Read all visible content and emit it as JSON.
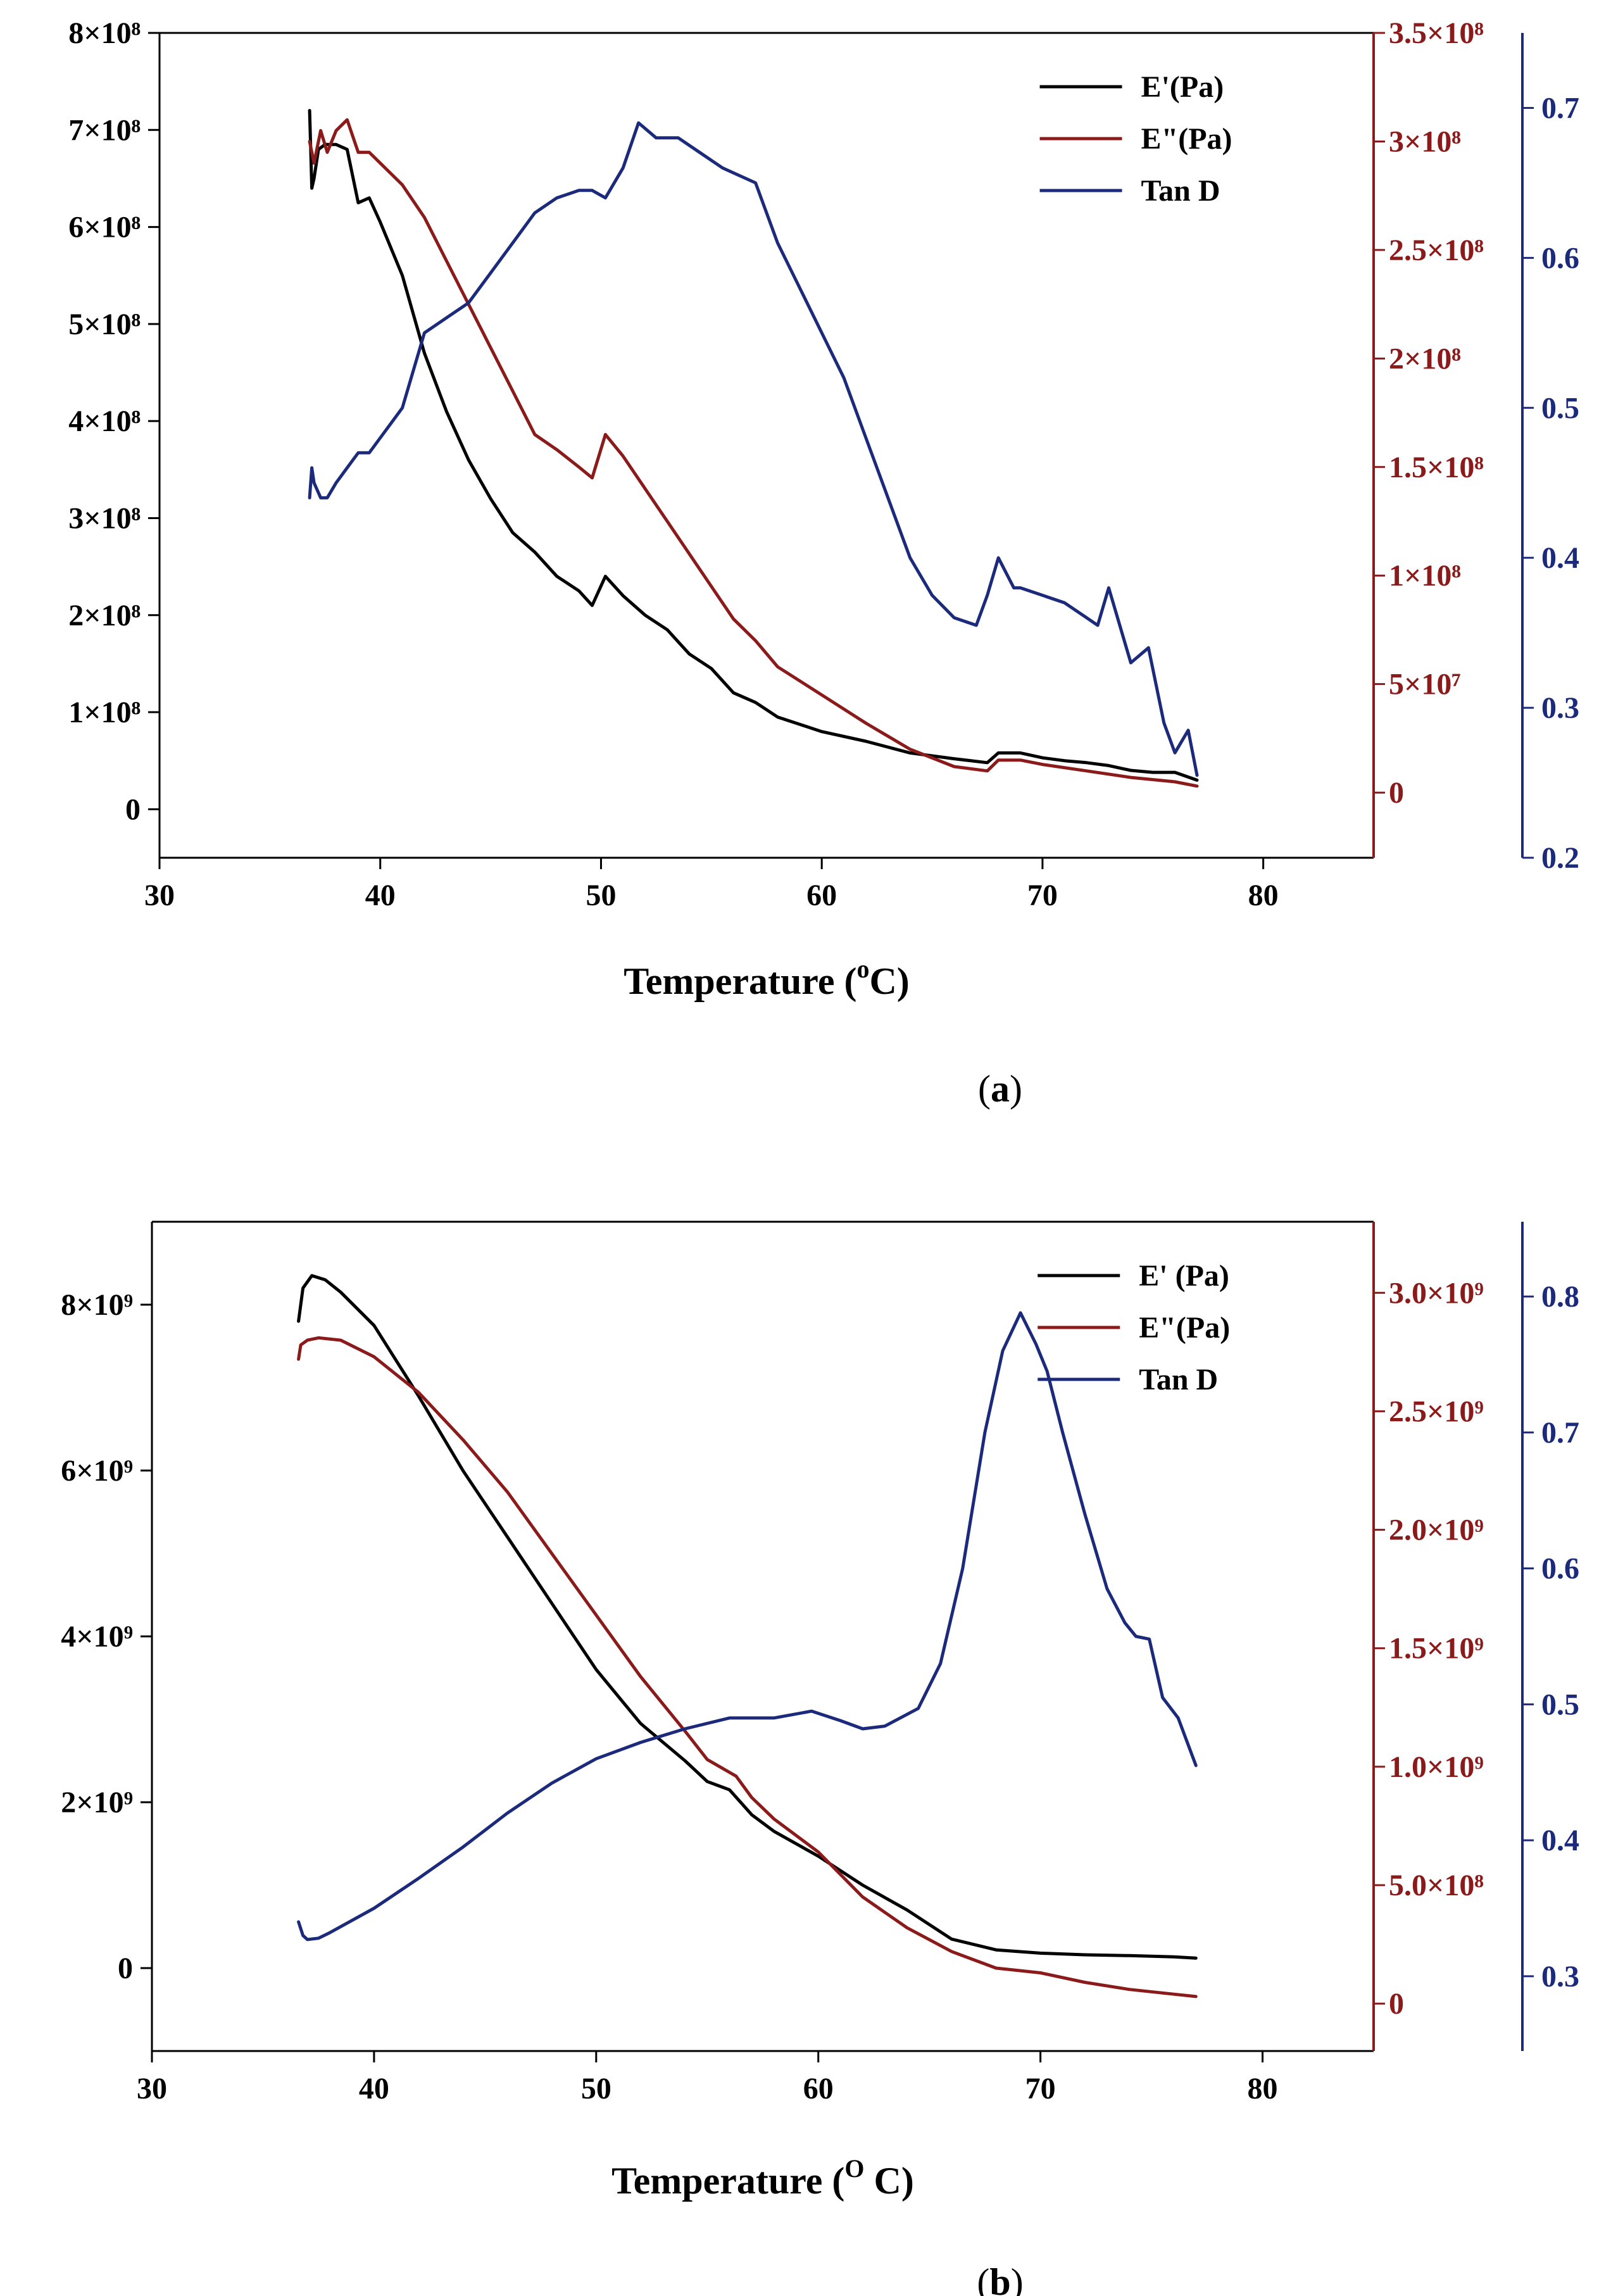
{
  "colors": {
    "black": "#000000",
    "red": "#8b1a1a",
    "blue": "#1b2a7a"
  },
  "chart_data": [
    {
      "type": "line",
      "panel": "a",
      "caption": "(a)",
      "caption_letter": "a",
      "xlabel": "Temperature (",
      "xlabel_sup": "o",
      "xlabel_tail": "C)",
      "xlim": [
        30,
        85
      ],
      "x_ticks": [
        "30",
        "40",
        "50",
        "60",
        "70",
        "80"
      ],
      "x_tick_values": [
        30,
        40,
        50,
        60,
        70,
        80
      ],
      "left_axis": {
        "ylim": [
          -50000000.0,
          800000000.0
        ],
        "ticks": [
          0,
          100000000.0,
          200000000.0,
          300000000.0,
          400000000.0,
          500000000.0,
          600000000.0,
          700000000.0,
          800000000.0
        ],
        "tick_labels": [
          "0",
          "1×10⁸",
          "2×10⁸",
          "3×10⁸",
          "4×10⁸",
          "5×10⁸",
          "6×10⁸",
          "7×10⁸",
          "8×10⁸"
        ]
      },
      "right_axis": {
        "ylim": [
          -30000000.0,
          350000000.0
        ],
        "ticks": [
          0,
          50000000.0,
          100000000.0,
          150000000.0,
          200000000.0,
          250000000.0,
          300000000.0,
          350000000.0
        ],
        "tick_labels": [
          "0",
          "5×10⁷",
          "1×10⁸",
          "1.5×10⁸",
          "2×10⁸",
          "2.5×10⁸",
          "3×10⁸",
          "3.5×10⁸"
        ]
      },
      "far_right_axis": {
        "ylim": [
          0.2,
          0.75
        ],
        "ticks": [
          0.2,
          0.3,
          0.4,
          0.5,
          0.6,
          0.7
        ],
        "tick_labels": [
          "0.2",
          "0.3",
          "0.4",
          "0.5",
          "0.6",
          "0.7"
        ]
      },
      "legend": [
        "E'(Pa)",
        "E\"(Pa)",
        "Tan D"
      ],
      "series": [
        {
          "name": "E'(Pa)",
          "axis": "left",
          "color": "#000000",
          "x": [
            36.8,
            36.9,
            37.0,
            37.2,
            37.5,
            38.0,
            38.5,
            39.0,
            39.5,
            40.0,
            41.0,
            42.0,
            43.0,
            44.0,
            45.0,
            46.0,
            47.0,
            48.0,
            49.0,
            49.6,
            50.2,
            51.0,
            52.0,
            53.0,
            54.0,
            55.0,
            56.0,
            57.0,
            58.0,
            60.0,
            62.0,
            64.0,
            66.0,
            67.5,
            68.0,
            69.0,
            70.0,
            71.0,
            72.0,
            73.0,
            74.0,
            75.0,
            76.0,
            77.0
          ],
          "y": [
            720000000.0,
            640000000.0,
            650000000.0,
            680000000.0,
            685000000.0,
            685000000.0,
            680000000.0,
            625000000.0,
            630000000.0,
            605000000.0,
            550000000.0,
            470000000.0,
            410000000.0,
            360000000.0,
            320000000.0,
            285000000.0,
            265000000.0,
            240000000.0,
            225000000.0,
            210000000.0,
            240000000.0,
            220000000.0,
            200000000.0,
            185000000.0,
            160000000.0,
            145000000.0,
            120000000.0,
            110000000.0,
            95000000.0,
            80000000.0,
            70000000.0,
            58000000.0,
            52000000.0,
            48000000.0,
            58000000.0,
            58000000.0,
            53000000.0,
            50000000.0,
            48000000.0,
            45000000.0,
            40000000.0,
            38000000.0,
            38000000.0,
            30000000.0
          ]
        },
        {
          "name": "E\"(Pa)",
          "axis": "right",
          "color": "#8b1a1a",
          "x": [
            36.8,
            37.0,
            37.3,
            37.6,
            38.0,
            38.5,
            39.0,
            39.5,
            40.0,
            40.5,
            41.0,
            42.0,
            43.0,
            44.0,
            45.0,
            46.0,
            47.0,
            48.0,
            49.0,
            49.6,
            50.2,
            51.0,
            52.0,
            53.0,
            54.0,
            55.0,
            56.0,
            57.0,
            58.0,
            60.0,
            62.0,
            64.0,
            66.0,
            67.5,
            68.0,
            69.0,
            70.0,
            72.0,
            74.0,
            76.0,
            77.0
          ],
          "y": [
            300000000.0,
            290000000.0,
            305000000.0,
            295000000.0,
            305000000.0,
            310000000.0,
            295000000.0,
            295000000.0,
            290000000.0,
            285000000.0,
            280000000.0,
            265000000.0,
            245000000.0,
            225000000.0,
            205000000.0,
            185000000.0,
            165000000.0,
            158000000.0,
            150000000.0,
            145000000.0,
            165000000.0,
            155000000.0,
            140000000.0,
            125000000.0,
            110000000.0,
            95000000.0,
            80000000.0,
            70000000.0,
            58000000.0,
            45000000.0,
            32000000.0,
            20000000.0,
            12000000.0,
            10000000.0,
            15000000.0,
            15000000.0,
            13000000.0,
            10000000.0,
            7000000.0,
            5000000.0,
            3000000.0
          ]
        },
        {
          "name": "Tan D",
          "axis": "far_right",
          "color": "#1b2a7a",
          "x": [
            36.8,
            36.9,
            37.0,
            37.3,
            37.6,
            38.0,
            38.5,
            39.0,
            39.5,
            40.0,
            40.5,
            41.0,
            42.0,
            43.0,
            44.0,
            45.0,
            46.0,
            47.0,
            48.0,
            49.0,
            49.6,
            50.2,
            51.0,
            51.7,
            52.5,
            53.5,
            54.5,
            55.5,
            57.0,
            58.0,
            59.0,
            60.0,
            61.0,
            62.0,
            63.0,
            64.0,
            65.0,
            66.0,
            67.0,
            67.5,
            68.0,
            68.7,
            69.0,
            70.0,
            71.0,
            72.0,
            72.5,
            73.0,
            74.0,
            74.8,
            75.5,
            76.0,
            76.6,
            77.0
          ],
          "y": [
            0.44,
            0.46,
            0.45,
            0.44,
            0.44,
            0.45,
            0.46,
            0.47,
            0.47,
            0.48,
            0.49,
            0.5,
            0.55,
            0.56,
            0.57,
            0.59,
            0.61,
            0.63,
            0.64,
            0.645,
            0.645,
            0.64,
            0.66,
            0.69,
            0.68,
            0.68,
            0.67,
            0.66,
            0.65,
            0.61,
            0.58,
            0.55,
            0.52,
            0.48,
            0.44,
            0.4,
            0.375,
            0.36,
            0.355,
            0.375,
            0.4,
            0.38,
            0.38,
            0.375,
            0.37,
            0.36,
            0.355,
            0.38,
            0.33,
            0.34,
            0.29,
            0.27,
            0.285,
            0.255
          ]
        }
      ]
    },
    {
      "type": "line",
      "panel": "b",
      "caption": "(b)",
      "caption_letter": "b",
      "xlabel": "Temperature (",
      "xlabel_sup": "O",
      "xlabel_tail": " C)",
      "xlim": [
        30,
        85
      ],
      "x_ticks": [
        "30",
        "40",
        "50",
        "60",
        "70",
        "80"
      ],
      "x_tick_values": [
        30,
        40,
        50,
        60,
        70,
        80
      ],
      "left_axis": {
        "ylim": [
          -1000000000.0,
          9000000000.0
        ],
        "ticks": [
          0,
          2000000000.0,
          4000000000.0,
          6000000000.0,
          8000000000.0
        ],
        "tick_labels": [
          "0",
          "2×10⁹",
          "4×10⁹",
          "6×10⁹",
          "8×10⁹"
        ]
      },
      "right_axis": {
        "ylim": [
          -200000000.0,
          3300000000.0
        ],
        "ticks": [
          0,
          500000000.0,
          1000000000.0,
          1500000000.0,
          2000000000.0,
          2500000000.0,
          3000000000.0
        ],
        "tick_labels": [
          "0",
          "5.0×10⁸",
          "1.0×10⁹",
          "1.5×10⁹",
          "2.0×10⁹",
          "2.5×10⁹",
          "3.0×10⁹"
        ]
      },
      "far_right_axis": {
        "ylim": [
          0.245,
          0.855
        ],
        "ticks": [
          0.3,
          0.4,
          0.5,
          0.6,
          0.7,
          0.8
        ],
        "tick_labels": [
          "0.3",
          "0.4",
          "0.5",
          "0.6",
          "0.7",
          "0.8"
        ]
      },
      "legend": [
        "E' (Pa)",
        "E\"(Pa)",
        "Tan D"
      ],
      "series": [
        {
          "name": "E' (Pa)",
          "axis": "left",
          "color": "#000000",
          "x": [
            36.6,
            36.8,
            37.2,
            37.8,
            38.5,
            40,
            42,
            44,
            46,
            48,
            50,
            52,
            54,
            55,
            56,
            57,
            58,
            60,
            62,
            64,
            66,
            68,
            70,
            72,
            74,
            76,
            77
          ],
          "y": [
            7800000000.0,
            8200000000.0,
            8350000000.0,
            8300000000.0,
            8150000000.0,
            7750000000.0,
            6900000000.0,
            6000000000.0,
            5200000000.0,
            4400000000.0,
            3600000000.0,
            2950000000.0,
            2500000000.0,
            2250000000.0,
            2150000000.0,
            1850000000.0,
            1650000000.0,
            1350000000.0,
            1000000000.0,
            700000000.0,
            350000000.0,
            220000000.0,
            180000000.0,
            160000000.0,
            150000000.0,
            135000000.0,
            120000000.0
          ]
        },
        {
          "name": "E\"(Pa)",
          "axis": "right",
          "color": "#8b1a1a",
          "x": [
            36.6,
            36.7,
            37.0,
            37.5,
            38.5,
            40,
            42,
            44,
            46,
            48,
            50,
            52,
            54,
            55,
            56.3,
            57.0,
            58.0,
            60,
            62,
            64,
            66,
            68,
            70,
            72,
            74,
            76,
            77
          ],
          "y": [
            2720000000.0,
            2780000000.0,
            2800000000.0,
            2810000000.0,
            2800000000.0,
            2730000000.0,
            2580000000.0,
            2380000000.0,
            2160000000.0,
            1900000000.0,
            1640000000.0,
            1380000000.0,
            1150000000.0,
            1030000000.0,
            960000000.0,
            870000000.0,
            780000000.0,
            640000000.0,
            450000000.0,
            320000000.0,
            220000000.0,
            150000000.0,
            130000000.0,
            90000000.0,
            60000000.0,
            40000000.0,
            30000000.0
          ]
        },
        {
          "name": "Tan D",
          "axis": "far_right",
          "color": "#1b2a7a",
          "x": [
            36.6,
            36.8,
            37.0,
            37.5,
            38,
            40,
            42,
            44,
            46,
            48,
            50,
            52,
            54,
            56,
            58,
            59.7,
            61,
            62,
            63,
            64.5,
            65.5,
            66.5,
            67.5,
            68.3,
            69.1,
            69.8,
            70.3,
            71,
            72,
            73,
            73.8,
            74.3,
            74.9,
            75.5,
            76.2,
            77
          ],
          "y": [
            0.34,
            0.33,
            0.327,
            0.328,
            0.332,
            0.35,
            0.372,
            0.395,
            0.42,
            0.442,
            0.46,
            0.472,
            0.482,
            0.49,
            0.49,
            0.495,
            0.488,
            0.482,
            0.484,
            0.497,
            0.53,
            0.6,
            0.7,
            0.76,
            0.788,
            0.765,
            0.745,
            0.7,
            0.64,
            0.585,
            0.56,
            0.55,
            0.548,
            0.505,
            0.49,
            0.455
          ]
        }
      ]
    }
  ]
}
